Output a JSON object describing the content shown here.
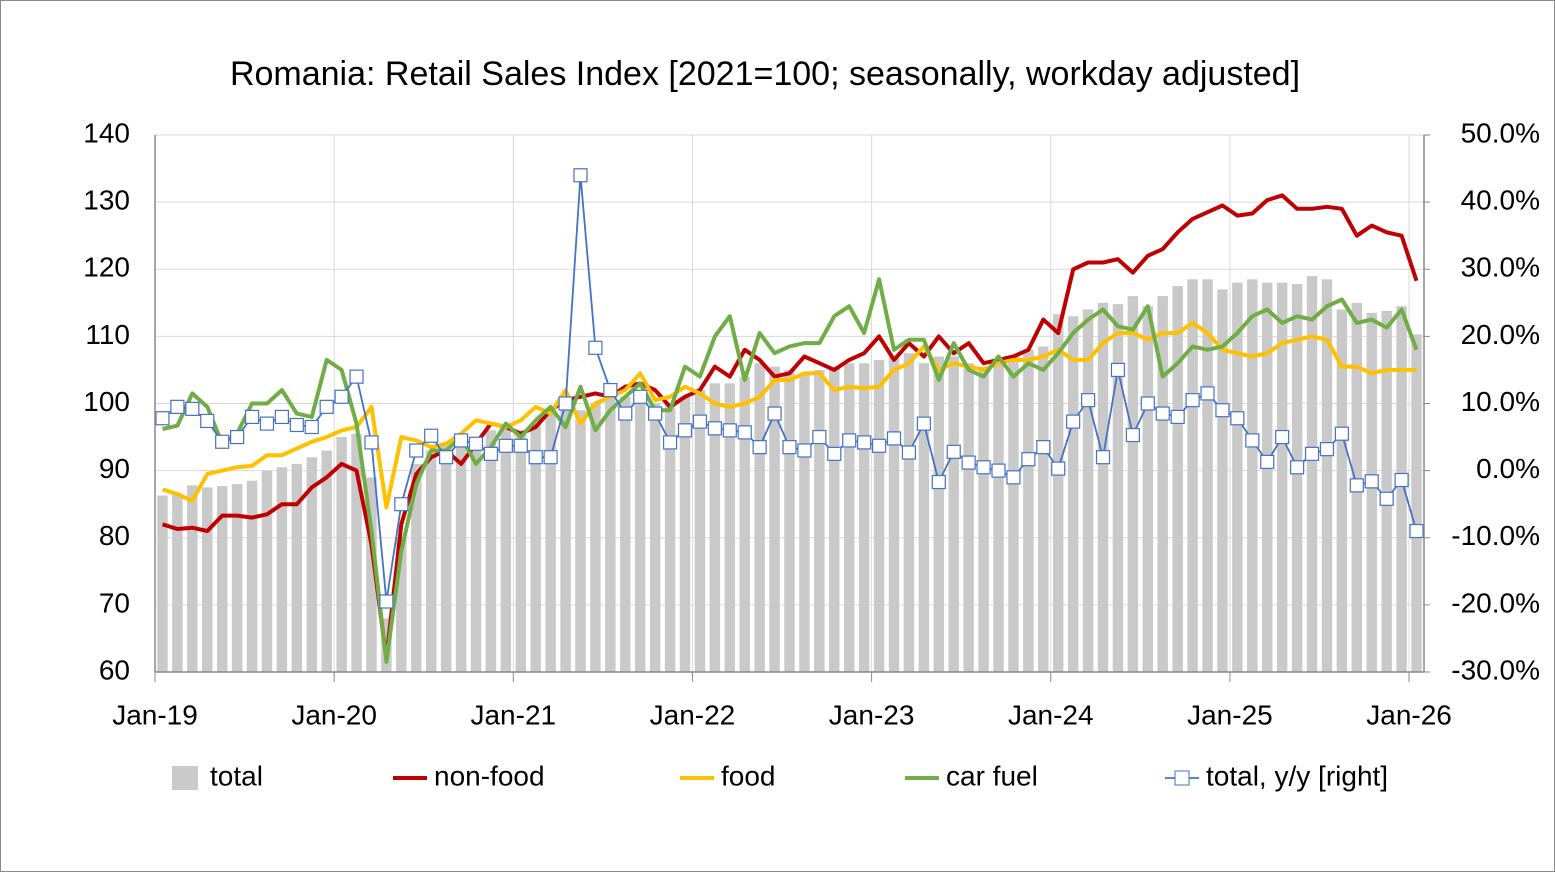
{
  "chart_data": {
    "type": "combo",
    "title": "Romania: Retail Sales Index [2021=100; seasonally, workday adjusted]",
    "categories": [
      "Jan-19",
      null,
      null,
      null,
      null,
      null,
      null,
      null,
      null,
      null,
      null,
      null,
      "Jan-20",
      null,
      null,
      null,
      null,
      null,
      null,
      null,
      null,
      null,
      null,
      null,
      "Jan-21",
      null,
      null,
      null,
      null,
      null,
      null,
      null,
      null,
      null,
      null,
      null,
      "Jan-22",
      null,
      null,
      null,
      null,
      null,
      null,
      null,
      null,
      null,
      null,
      null,
      "Jan-23",
      null,
      null,
      null,
      null,
      null,
      null,
      null,
      null,
      null,
      null,
      null,
      "Jan-24",
      null,
      null,
      null,
      null,
      null,
      null,
      null,
      null,
      null,
      null,
      null,
      "Jan-25",
      null,
      null,
      null,
      null,
      null,
      null,
      null,
      null,
      null,
      null,
      null,
      "Jan-26"
    ],
    "ylim": [
      60,
      140
    ],
    "yticks": [
      60,
      70,
      80,
      90,
      100,
      110,
      120,
      130,
      140
    ],
    "y2lim": [
      -30,
      50
    ],
    "y2ticks": [
      {
        "value": -30,
        "label": "-30.0%"
      },
      {
        "value": -20,
        "label": "-20.0%"
      },
      {
        "value": -10,
        "label": "-10.0%"
      },
      {
        "value": 0,
        "label": "0.0%"
      },
      {
        "value": 10,
        "label": "10.0%"
      },
      {
        "value": 20,
        "label": "20.0%"
      },
      {
        "value": 30,
        "label": "30.0%"
      },
      {
        "value": 40,
        "label": "40.0%"
      },
      {
        "value": 50,
        "label": "50.0%"
      }
    ],
    "grid": true,
    "legend": "bottom",
    "series": [
      {
        "name": "total",
        "type": "bar",
        "color": "#c9c9c9",
        "values": [
          86.3,
          86.5,
          87.8,
          87.5,
          87.7,
          88,
          88.5,
          90,
          90.5,
          91,
          92,
          93,
          95,
          95.5,
          89,
          68,
          80,
          91,
          93,
          94,
          94,
          95,
          96,
          96.5,
          96,
          97,
          99,
          100,
          99,
          100,
          101,
          101,
          101,
          100,
          100,
          101,
          102,
          103,
          103,
          104,
          106,
          105.5,
          105,
          104.5,
          105,
          105.5,
          106,
          106,
          106.5,
          107,
          107.5,
          106,
          107,
          107,
          106,
          105.5,
          106,
          107,
          108,
          108.5,
          113.3,
          113,
          114,
          115,
          114.8,
          116,
          114.5,
          116,
          117.5,
          118.5,
          118.5,
          117,
          118,
          118.5,
          118,
          118,
          117.8,
          119,
          118.5,
          114,
          115,
          113.5,
          113.8,
          114.5,
          110.3
        ]
      },
      {
        "name": "non-food",
        "type": "line",
        "color": "#c00000",
        "values": [
          82,
          81.3,
          81.5,
          81,
          83.3,
          83.3,
          83,
          83.5,
          85,
          85,
          87.5,
          89,
          91,
          90,
          79,
          62,
          82,
          89.5,
          92,
          93,
          91,
          94,
          97,
          96.5,
          95.5,
          96.5,
          99,
          100.5,
          101,
          101.5,
          101,
          102.5,
          103,
          102,
          99.5,
          101,
          102,
          105.5,
          104,
          108,
          106.5,
          104,
          104.5,
          107,
          106,
          105,
          106.5,
          107.5,
          110,
          106.5,
          109,
          107,
          110,
          107.5,
          109,
          106,
          106.5,
          107,
          108,
          112.5,
          110.5,
          120,
          121,
          121,
          121.5,
          119.5,
          122,
          123,
          125.5,
          127.5,
          128.5,
          129.5,
          128,
          128.3,
          130.3,
          131,
          129,
          129,
          129.3,
          129,
          125,
          126.5,
          125.5,
          125,
          118.3
        ]
      },
      {
        "name": "food",
        "type": "line",
        "color": "#ffc000",
        "values": [
          87.2,
          86.5,
          85.5,
          89.5,
          90,
          90.5,
          90.7,
          92.3,
          92.3,
          93.3,
          94.3,
          95,
          96,
          96.5,
          99.5,
          84.5,
          95,
          94.5,
          93.5,
          94,
          95.5,
          97.5,
          97,
          96.5,
          97.5,
          99.5,
          98.5,
          102,
          97,
          100,
          101,
          102,
          104.5,
          100.5,
          101,
          102.5,
          101.5,
          100,
          99.5,
          100,
          101,
          103.5,
          103.5,
          104.5,
          104.5,
          102,
          102.5,
          102.3,
          102.5,
          105,
          106,
          108.5,
          105,
          106,
          105.5,
          105,
          106,
          106.5,
          106.5,
          107,
          108,
          106.5,
          106.5,
          109,
          110.5,
          110.5,
          109.5,
          110.5,
          110.5,
          112,
          110.5,
          108,
          107.5,
          107,
          107.5,
          109,
          109.5,
          110,
          109.5,
          105.5,
          105.5,
          104.5,
          105,
          105,
          105
        ]
      },
      {
        "name": "car fuel",
        "type": "line",
        "color": "#70ad47",
        "values": [
          96.2,
          96.7,
          101.5,
          99.5,
          94,
          95.5,
          100,
          100,
          102,
          98.5,
          98,
          106.5,
          105,
          97,
          81,
          61.5,
          78,
          88,
          93,
          93,
          95,
          91,
          93.5,
          97,
          95,
          97.5,
          99.5,
          96.5,
          102.5,
          96,
          99,
          101,
          103,
          99,
          99,
          105.5,
          104,
          110,
          113,
          103.5,
          110.5,
          107.5,
          108.5,
          109,
          109,
          113,
          114.5,
          110.5,
          118.5,
          108,
          109.5,
          109.5,
          103.5,
          109,
          105,
          104,
          107,
          104,
          106,
          105,
          107.5,
          110.5,
          112.5,
          114,
          111.5,
          111,
          114.5,
          104,
          106,
          108.5,
          108,
          108.5,
          110.5,
          113,
          114,
          112,
          113,
          112.5,
          114.5,
          115.5,
          112,
          112.5,
          111.3,
          114,
          108
        ]
      },
      {
        "name": "total, y/y [right]",
        "type": "line-marker",
        "axis": "y2",
        "color": "#4472c4",
        "values": [
          7.8,
          9.5,
          9.2,
          7.4,
          4.3,
          5,
          8,
          7,
          8,
          6.8,
          6.5,
          9.5,
          11,
          14,
          4.2,
          -19.5,
          -5,
          3,
          5.2,
          2,
          4.5,
          4,
          2.5,
          3.7,
          3.7,
          2,
          2,
          10,
          44,
          18.3,
          12,
          8.5,
          11,
          8.5,
          4.2,
          6,
          7.3,
          6.3,
          6,
          5.7,
          3.5,
          8.5,
          3.5,
          3,
          5,
          2.5,
          4.5,
          4.2,
          3.7,
          4.8,
          2.7,
          7,
          -1.7,
          2.8,
          1.2,
          0.5,
          0,
          -1,
          1.7,
          3.5,
          0.3,
          7.3,
          10.5,
          2,
          15,
          5.3,
          10,
          8.5,
          8,
          10.5,
          11.5,
          9,
          7.8,
          4.5,
          1.3,
          5,
          0.5,
          2.5,
          3.2,
          5.5,
          -2.2,
          -1.6,
          -4.2,
          -1.4,
          -9
        ]
      }
    ]
  }
}
